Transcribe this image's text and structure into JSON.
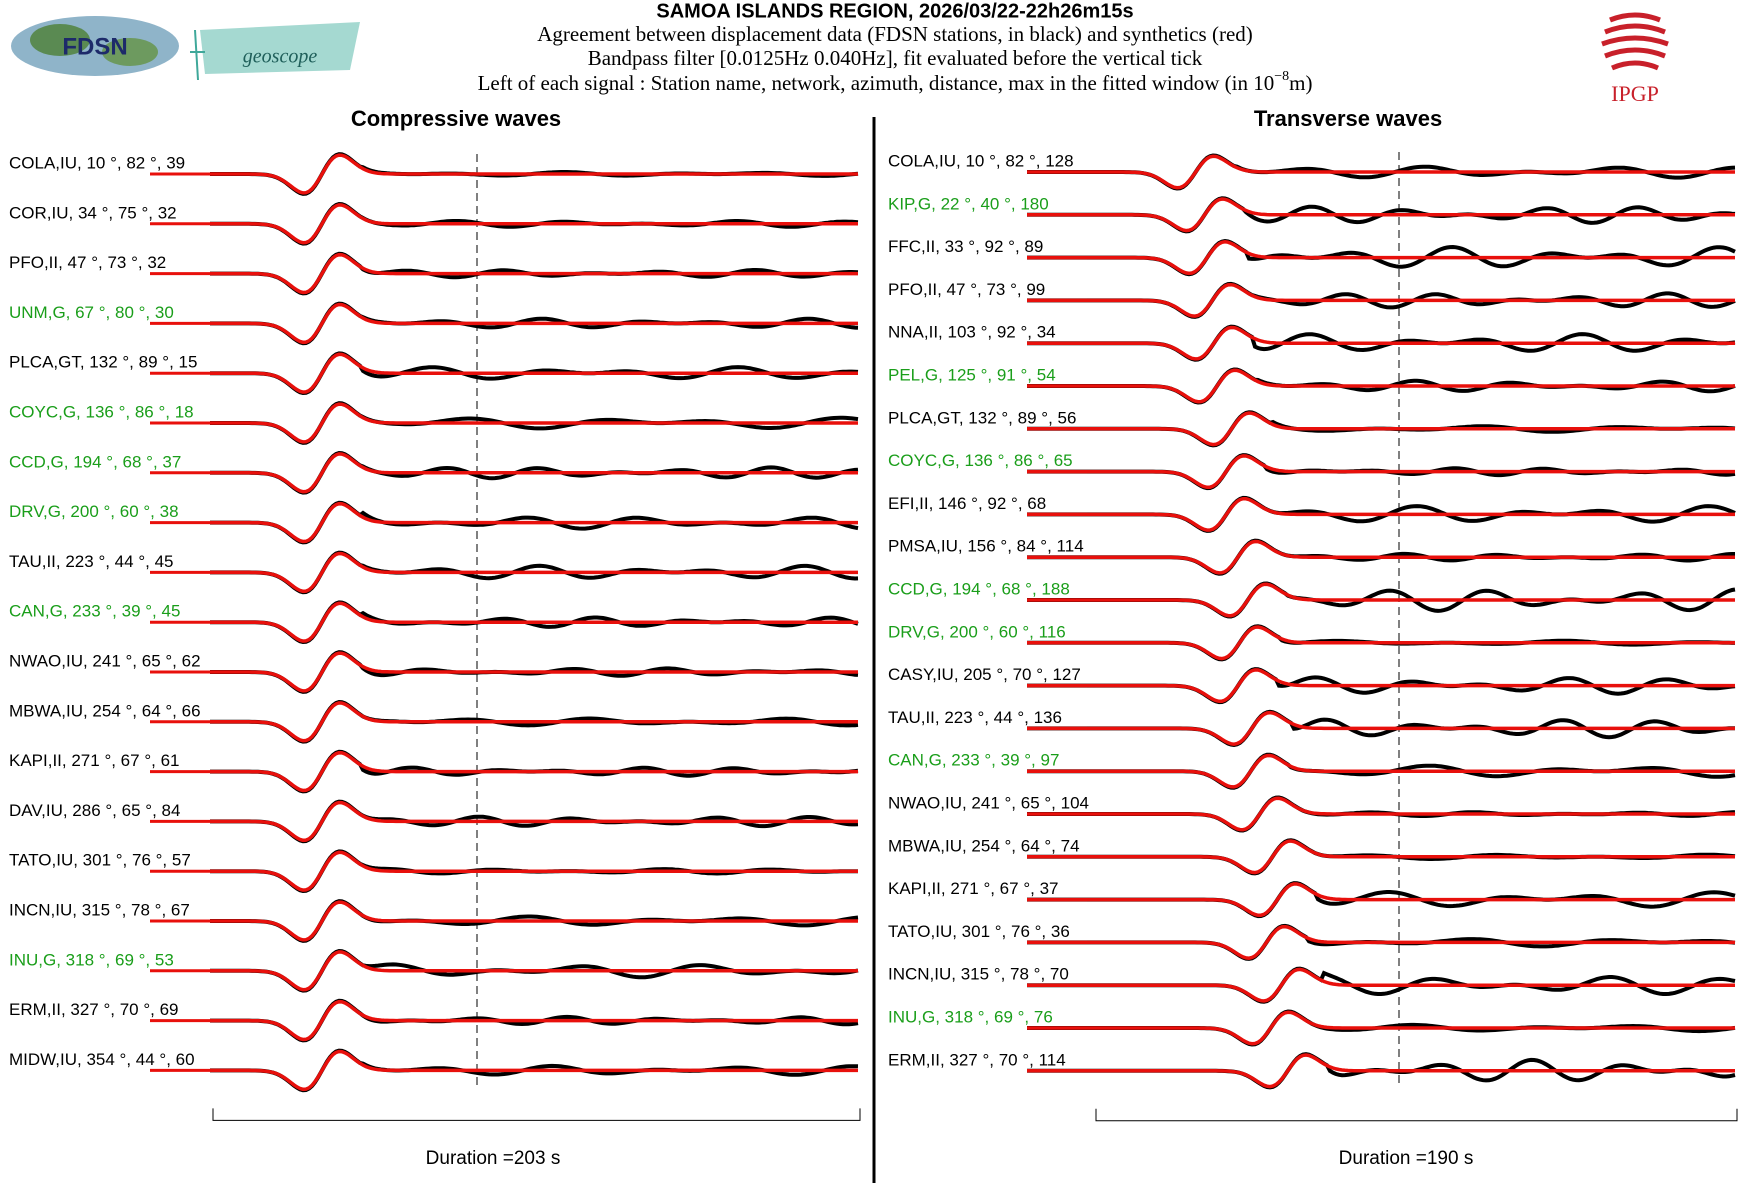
{
  "header": {
    "title": "SAMOA ISLANDS REGION, 2026/03/22-22h26m15s",
    "line1": "Agreement between displacement data (FDSN stations, in black) and synthetics (red)",
    "line2": "Bandpass filter [0.0125Hz 0.040Hz], fit evaluated before the vertical tick",
    "line3": "Left of each signal : Station name, network, azimuth, distance, max in the fitted window (in 10",
    "line3_exp": "−8",
    "line3_unit": "m)",
    "logo_fdsn": "FDSN",
    "logo_geoscope": "geoscope",
    "logo_ipgp": "IPGP"
  },
  "panels": [
    {
      "title": "Compressive waves",
      "duration": "Duration =203 s",
      "stations": [
        {
          "label": "COLA,IU, 10 °, 82 °, 39",
          "color": "#000000"
        },
        {
          "label": "COR,IU, 34 °, 75 °, 32",
          "color": "#000000"
        },
        {
          "label": "PFO,II, 47 °, 73 °, 32",
          "color": "#000000"
        },
        {
          "label": "UNM,G, 67 °, 80 °, 30",
          "color": "#1a9e1a"
        },
        {
          "label": "PLCA,GT, 132 °, 89 °, 15",
          "color": "#000000"
        },
        {
          "label": "COYC,G, 136 °, 86 °, 18",
          "color": "#1a9e1a"
        },
        {
          "label": "CCD,G, 194 °, 68 °, 37",
          "color": "#1a9e1a"
        },
        {
          "label": "DRV,G, 200 °, 60 °, 38",
          "color": "#1a9e1a"
        },
        {
          "label": "TAU,II, 223 °, 44 °, 45",
          "color": "#000000"
        },
        {
          "label": "CAN,G, 233 °, 39 °, 45",
          "color": "#1a9e1a"
        },
        {
          "label": "NWAO,IU, 241 °, 65 °, 62",
          "color": "#000000"
        },
        {
          "label": "MBWA,IU, 254 °, 64 °, 66",
          "color": "#000000"
        },
        {
          "label": "KAPI,II, 271 °, 67 °, 61",
          "color": "#000000"
        },
        {
          "label": "DAV,IU, 286 °, 65 °, 84",
          "color": "#000000"
        },
        {
          "label": "TATO,IU, 301 °, 76 °, 57",
          "color": "#000000"
        },
        {
          "label": "INCN,IU, 315 °, 78 °, 67",
          "color": "#000000"
        },
        {
          "label": "INU,G, 318 °, 69 °, 53",
          "color": "#1a9e1a"
        },
        {
          "label": "ERM,II, 327 °, 70 °, 69",
          "color": "#000000"
        },
        {
          "label": "MIDW,IU, 354 °, 44 °, 60",
          "color": "#000000"
        }
      ]
    },
    {
      "title": "Transverse waves",
      "duration": "Duration =190 s",
      "stations": [
        {
          "label": "COLA,IU, 10 °, 82 °, 128",
          "color": "#000000"
        },
        {
          "label": "KIP,G, 22 °, 40 °, 180",
          "color": "#1a9e1a"
        },
        {
          "label": "FFC,II, 33 °, 92 °, 89",
          "color": "#000000"
        },
        {
          "label": "PFO,II, 47 °, 73 °, 99",
          "color": "#000000"
        },
        {
          "label": "NNA,II, 103 °, 92 °, 34",
          "color": "#000000"
        },
        {
          "label": "PEL,G, 125 °, 91 °, 54",
          "color": "#1a9e1a"
        },
        {
          "label": "PLCA,GT, 132 °, 89 °, 56",
          "color": "#000000"
        },
        {
          "label": "COYC,G, 136 °, 86 °, 65",
          "color": "#1a9e1a"
        },
        {
          "label": "EFI,II, 146 °, 92 °, 68",
          "color": "#000000"
        },
        {
          "label": "PMSA,IU, 156 °, 84 °, 114",
          "color": "#000000"
        },
        {
          "label": "CCD,G, 194 °, 68 °, 188",
          "color": "#1a9e1a"
        },
        {
          "label": "DRV,G, 200 °, 60 °, 116",
          "color": "#1a9e1a"
        },
        {
          "label": "CASY,IU, 205 °, 70 °, 127",
          "color": "#000000"
        },
        {
          "label": "TAU,II, 223 °, 44 °, 136",
          "color": "#000000"
        },
        {
          "label": "CAN,G, 233 °, 39 °, 97",
          "color": "#1a9e1a"
        },
        {
          "label": "NWAO,IU, 241 °, 65 °, 104",
          "color": "#000000"
        },
        {
          "label": "MBWA,IU, 254 °, 64 °, 74",
          "color": "#000000"
        },
        {
          "label": "KAPI,II, 271 °, 67 °, 37",
          "color": "#000000"
        },
        {
          "label": "TATO,IU, 301 °, 76 °, 36",
          "color": "#000000"
        },
        {
          "label": "INCN,IU, 315 °, 78 °, 70",
          "color": "#000000"
        },
        {
          "label": "INU,G, 318 °, 69 °, 76",
          "color": "#1a9e1a"
        },
        {
          "label": "ERM,II, 327 °, 70 °, 114",
          "color": "#000000"
        }
      ]
    }
  ]
}
